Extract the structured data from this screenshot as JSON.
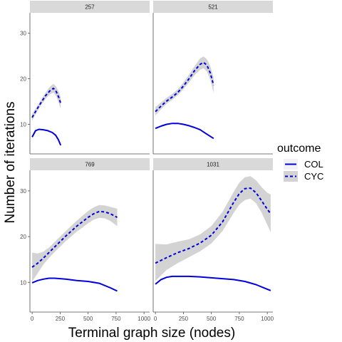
{
  "chart_data": {
    "type": "line",
    "xlabel": "Terminal graph size (nodes)",
    "ylabel": "Number of iterations",
    "xlim": [
      -20,
      1050
    ],
    "ylim": [
      3.5,
      34.5
    ],
    "x_ticks": [
      0,
      250,
      500,
      750,
      1000
    ],
    "y_ticks": [
      10,
      20,
      30
    ],
    "legend": {
      "title": "outcome",
      "placement": "right",
      "entries": [
        {
          "name": "COL",
          "linetype": "solid"
        },
        {
          "name": "CYC",
          "linetype": "dashed"
        }
      ]
    },
    "colors": {
      "line": "#0000dd",
      "ribbon": "#d3d3d3",
      "strip": "#d9d9d9",
      "axis": "#4d4d4d"
    },
    "panels": [
      {
        "title": "257",
        "series": [
          {
            "name": "COL",
            "points": [
              [
                0,
                7.2
              ],
              [
                30,
                8.6
              ],
              [
                60,
                8.9
              ],
              [
                100,
                8.8
              ],
              [
                140,
                8.6
              ],
              [
                180,
                8.2
              ],
              [
                210,
                7.6
              ],
              [
                235,
                6.6
              ],
              [
                255,
                5.4
              ]
            ]
          },
          {
            "name": "CYC",
            "points": [
              [
                0,
                11.5
              ],
              [
                40,
                13.2
              ],
              [
                80,
                14.8
              ],
              [
                120,
                16.3
              ],
              [
                160,
                17.4
              ],
              [
                190,
                17.9
              ],
              [
                215,
                17.2
              ],
              [
                240,
                15.8
              ],
              [
                255,
                14.6
              ]
            ],
            "ribbon": [
              [
                0,
                10.8,
                12.3
              ],
              [
                40,
                12.6,
                13.8
              ],
              [
                80,
                14.2,
                15.4
              ],
              [
                120,
                15.6,
                17.0
              ],
              [
                160,
                16.6,
                18.3
              ],
              [
                190,
                17.0,
                18.9
              ],
              [
                215,
                16.2,
                18.3
              ],
              [
                240,
                14.6,
                17.0
              ],
              [
                255,
                13.3,
                15.9
              ]
            ]
          }
        ]
      },
      {
        "title": "521",
        "series": [
          {
            "name": "COL",
            "points": [
              [
                0,
                9.1
              ],
              [
                50,
                9.6
              ],
              [
                100,
                10.0
              ],
              [
                150,
                10.2
              ],
              [
                200,
                10.2
              ],
              [
                250,
                10.0
              ],
              [
                300,
                9.7
              ],
              [
                350,
                9.3
              ],
              [
                400,
                8.8
              ],
              [
                450,
                8.0
              ],
              [
                520,
                6.9
              ]
            ]
          },
          {
            "name": "CYC",
            "points": [
              [
                0,
                12.8
              ],
              [
                50,
                14.0
              ],
              [
                100,
                15.1
              ],
              [
                150,
                16.0
              ],
              [
                200,
                17.0
              ],
              [
                250,
                18.4
              ],
              [
                300,
                20.0
              ],
              [
                350,
                21.8
              ],
              [
                400,
                23.2
              ],
              [
                430,
                23.6
              ],
              [
                460,
                23.0
              ],
              [
                490,
                21.3
              ],
              [
                520,
                18.6
              ]
            ],
            "ribbon": [
              [
                0,
                11.9,
                13.8
              ],
              [
                50,
                13.3,
                14.8
              ],
              [
                100,
                14.5,
                15.8
              ],
              [
                150,
                15.4,
                16.7
              ],
              [
                200,
                16.4,
                17.7
              ],
              [
                250,
                17.7,
                19.2
              ],
              [
                300,
                19.2,
                20.9
              ],
              [
                350,
                20.8,
                22.8
              ],
              [
                400,
                22.0,
                24.5
              ],
              [
                430,
                22.3,
                24.9
              ],
              [
                460,
                21.6,
                24.3
              ],
              [
                490,
                19.8,
                22.8
              ],
              [
                520,
                16.9,
                20.3
              ]
            ]
          }
        ]
      },
      {
        "title": "769",
        "series": [
          {
            "name": "COL",
            "points": [
              [
                0,
                9.9
              ],
              [
                50,
                10.4
              ],
              [
                100,
                10.7
              ],
              [
                150,
                10.9
              ],
              [
                200,
                10.9
              ],
              [
                300,
                10.7
              ],
              [
                400,
                10.4
              ],
              [
                500,
                10.2
              ],
              [
                600,
                9.8
              ],
              [
                700,
                8.8
              ],
              [
                760,
                8.1
              ]
            ]
          },
          {
            "name": "CYC",
            "points": [
              [
                0,
                13.3
              ],
              [
                50,
                14.2
              ],
              [
                100,
                15.3
              ],
              [
                150,
                16.5
              ],
              [
                200,
                17.7
              ],
              [
                300,
                20.1
              ],
              [
                400,
                22.3
              ],
              [
                500,
                24.2
              ],
              [
                550,
                25.0
              ],
              [
                600,
                25.5
              ],
              [
                650,
                25.4
              ],
              [
                700,
                25.0
              ],
              [
                760,
                24.2
              ]
            ],
            "ribbon": [
              [
                0,
                10.2,
                16.5
              ],
              [
                50,
                12.0,
                16.3
              ],
              [
                100,
                13.9,
                16.7
              ],
              [
                150,
                15.3,
                17.6
              ],
              [
                200,
                16.6,
                18.8
              ],
              [
                300,
                19.0,
                21.2
              ],
              [
                400,
                21.1,
                23.5
              ],
              [
                500,
                22.9,
                25.6
              ],
              [
                550,
                23.7,
                26.4
              ],
              [
                600,
                24.1,
                26.9
              ],
              [
                650,
                24.0,
                26.8
              ],
              [
                700,
                23.4,
                26.5
              ],
              [
                760,
                22.3,
                26.1
              ]
            ]
          }
        ]
      },
      {
        "title": "1031",
        "series": [
          {
            "name": "COL",
            "points": [
              [
                0,
                9.6
              ],
              [
                50,
                10.6
              ],
              [
                100,
                11.1
              ],
              [
                150,
                11.3
              ],
              [
                200,
                11.3
              ],
              [
                300,
                11.3
              ],
              [
                400,
                11.2
              ],
              [
                500,
                11.0
              ],
              [
                600,
                10.8
              ],
              [
                700,
                10.6
              ],
              [
                800,
                10.2
              ],
              [
                900,
                9.5
              ],
              [
                1000,
                8.5
              ],
              [
                1030,
                8.2
              ]
            ]
          },
          {
            "name": "CYC",
            "points": [
              [
                0,
                14.2
              ],
              [
                100,
                15.4
              ],
              [
                200,
                16.5
              ],
              [
                300,
                17.4
              ],
              [
                400,
                18.6
              ],
              [
                500,
                20.3
              ],
              [
                600,
                23.2
              ],
              [
                700,
                27.5
              ],
              [
                750,
                29.4
              ],
              [
                800,
                30.5
              ],
              [
                850,
                30.6
              ],
              [
                900,
                29.6
              ],
              [
                950,
                27.8
              ],
              [
                1000,
                26.0
              ],
              [
                1030,
                25.0
              ]
            ],
            "ribbon": [
              [
                0,
                10.3,
                18.4
              ],
              [
                100,
                12.7,
                18.3
              ],
              [
                200,
                14.2,
                18.9
              ],
              [
                300,
                15.5,
                19.4
              ],
              [
                400,
                16.8,
                20.5
              ],
              [
                500,
                18.5,
                22.3
              ],
              [
                600,
                21.2,
                25.4
              ],
              [
                700,
                25.2,
                29.8
              ],
              [
                750,
                27.0,
                31.8
              ],
              [
                800,
                28.0,
                33.0
              ],
              [
                850,
                28.3,
                33.2
              ],
              [
                900,
                27.3,
                32.3
              ],
              [
                950,
                25.2,
                30.8
              ],
              [
                1000,
                22.6,
                29.6
              ],
              [
                1030,
                20.9,
                29.2
              ]
            ]
          }
        ]
      }
    ]
  }
}
